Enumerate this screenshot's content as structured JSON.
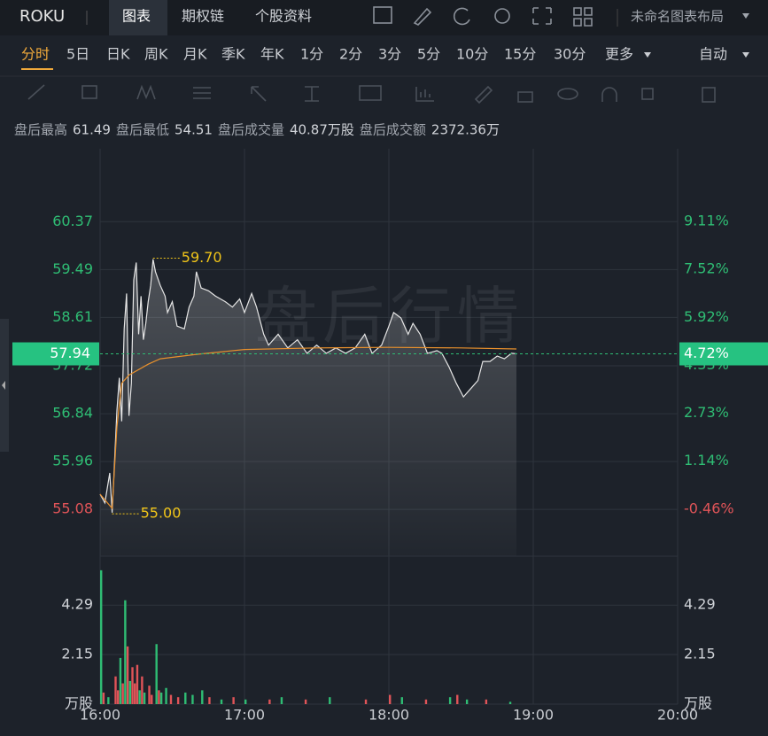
{
  "ui": {
    "symbol": "ROKU",
    "tabs": [
      "图表",
      "期权链",
      "个股资料"
    ],
    "layout_name": "未命名图表布局",
    "periods": [
      "分时",
      "5日",
      "日K",
      "周K",
      "月K",
      "季K",
      "年K",
      "1分",
      "2分",
      "3分",
      "5分",
      "10分",
      "15分",
      "30分",
      "更多"
    ],
    "period_mode": "自动",
    "info": [
      {
        "label": "盘后最高",
        "value": "61.49"
      },
      {
        "label": "盘后最低",
        "value": "54.51"
      },
      {
        "label": "盘后成交量",
        "value": "40.87万股"
      },
      {
        "label": "盘后成交额",
        "value": "2372.36万"
      }
    ],
    "watermark": "盘后行情"
  },
  "chart_data": [
    {
      "type": "line",
      "xlim": [
        "16:00",
        "20:00"
      ],
      "xticks": [
        "16:00",
        "17:00",
        "18:00",
        "19:00",
        "20:00"
      ],
      "ylim": [
        54.22,
        61.71
      ],
      "yticks": [
        55.08,
        55.96,
        56.84,
        57.72,
        58.61,
        59.49,
        60.37
      ],
      "y2lim": [
        -2.02,
        11.52
      ],
      "y2ticks": [
        {
          "value": -0.46,
          "label": "-0.46%"
        },
        {
          "value": 1.14,
          "label": "1.14%"
        },
        {
          "value": 2.73,
          "label": "2.73%"
        },
        {
          "value": 4.33,
          "label": "4.33%"
        },
        {
          "value": 5.92,
          "label": "5.92%"
        },
        {
          "value": 7.52,
          "label": "7.52%"
        },
        {
          "value": 9.11,
          "label": "9.11%"
        }
      ],
      "grid": true,
      "up_color": "#2fbd74",
      "down_color": "#e05458",
      "x": [
        "16:00",
        "16:02",
        "16:04",
        "16:05",
        "16:07",
        "16:08",
        "16:09",
        "16:10",
        "16:11",
        "16:12",
        "16:13",
        "16:14",
        "16:15",
        "16:16",
        "16:17",
        "16:18",
        "16:19",
        "16:20",
        "16:21",
        "16:22",
        "16:23",
        "16:25",
        "16:27",
        "16:28",
        "16:30",
        "16:32",
        "16:35",
        "16:37",
        "16:39",
        "16:40",
        "16:42",
        "16:45",
        "16:48",
        "16:52",
        "16:55",
        "16:58",
        "17:00",
        "17:03",
        "17:05",
        "17:08",
        "17:10",
        "17:14",
        "17:18",
        "17:22",
        "17:26",
        "17:30",
        "17:34",
        "17:38",
        "17:42",
        "17:46",
        "17:50",
        "17:53",
        "17:57",
        "18:00",
        "18:02",
        "18:05",
        "18:08",
        "18:10",
        "18:13",
        "18:16",
        "18:20",
        "18:22",
        "18:25",
        "18:28",
        "18:31",
        "18:34",
        "18:37",
        "18:39",
        "18:42",
        "18:45",
        "18:48",
        "18:51",
        "18:53"
      ],
      "series": [
        {
          "color": "#e6e6e6",
          "values": [
            55.36,
            55.2,
            55.75,
            55.02,
            56.9,
            57.5,
            56.7,
            58.4,
            59.05,
            56.8,
            57.4,
            59.3,
            59.62,
            58.3,
            59.0,
            58.2,
            58.5,
            58.9,
            59.2,
            59.68,
            59.45,
            59.2,
            59.0,
            58.7,
            58.9,
            58.45,
            58.4,
            58.8,
            59.0,
            59.45,
            59.15,
            59.1,
            59.0,
            58.9,
            58.8,
            58.95,
            58.7,
            59.05,
            58.8,
            58.3,
            58.1,
            58.3,
            58.05,
            58.2,
            57.95,
            58.1,
            57.95,
            58.05,
            57.95,
            58.05,
            58.3,
            57.95,
            58.1,
            58.45,
            58.7,
            58.6,
            58.3,
            58.5,
            58.3,
            57.95,
            58.0,
            57.95,
            57.7,
            57.4,
            57.15,
            57.3,
            57.45,
            57.8,
            57.8,
            57.9,
            57.85,
            57.95,
            57.94
          ]
        },
        {
          "color": "#e8902c",
          "x": [
            "16:00",
            "16:05",
            "16:07",
            "16:09",
            "16:12",
            "16:20",
            "16:25",
            "16:40",
            "17:00",
            "17:30",
            "18:00",
            "18:30",
            "18:53"
          ],
          "values": [
            55.36,
            55.1,
            56.6,
            57.4,
            57.55,
            57.75,
            57.85,
            57.93,
            58.02,
            58.05,
            58.06,
            58.05,
            58.03
          ]
        }
      ],
      "annotations": [
        {
          "x": "16:22",
          "value": 59.7,
          "label": "59.70"
        },
        {
          "x": "16:05",
          "value": 55.0,
          "label": "55.00"
        }
      ],
      "current": {
        "value": 57.94,
        "change": 4.72,
        "change_label": "4.72%"
      }
    },
    {
      "type": "bar",
      "xlim": [
        "16:00",
        "20:00"
      ],
      "ylim": [
        0,
        6.41
      ],
      "yticks": [
        {
          "value": 0,
          "label": "万股"
        },
        2.15,
        4.29
      ],
      "grid": true,
      "x": [
        "16:00",
        "16:01",
        "16:03",
        "16:06",
        "16:07",
        "16:08",
        "16:09",
        "16:10",
        "16:11",
        "16:12",
        "16:13",
        "16:14",
        "16:15",
        "16:16",
        "16:17",
        "16:18",
        "16:20",
        "16:21",
        "16:23",
        "16:24",
        "16:25",
        "16:27",
        "16:29",
        "16:32",
        "16:35",
        "16:38",
        "16:42",
        "16:45",
        "16:50",
        "16:55",
        "17:00",
        "17:10",
        "17:15",
        "17:25",
        "17:35",
        "17:50",
        "18:00",
        "18:05",
        "18:15",
        "18:25",
        "18:28",
        "18:32",
        "18:40",
        "18:50"
      ],
      "values": [
        5.8,
        0.5,
        0.3,
        1.2,
        0.6,
        2.0,
        0.9,
        4.5,
        2.5,
        1.0,
        1.6,
        0.9,
        1.7,
        0.6,
        1.2,
        0.5,
        0.8,
        0.4,
        2.6,
        0.6,
        0.5,
        0.7,
        0.4,
        0.3,
        0.5,
        0.4,
        0.6,
        0.3,
        0.2,
        0.3,
        0.2,
        0.2,
        0.3,
        0.2,
        0.3,
        0.2,
        0.4,
        0.3,
        0.2,
        0.3,
        0.4,
        0.2,
        0.2,
        0.1
      ],
      "colors": [
        "#2fbd74",
        "#e05458",
        "#2fbd74",
        "#e05458",
        "#e05458",
        "#2fbd74",
        "#e05458",
        "#2fbd74",
        "#e05458",
        "#2fbd74",
        "#e05458",
        "#e05458",
        "#e05458",
        "#2fbd74",
        "#e05458",
        "#2fbd74",
        "#e05458",
        "#e05458",
        "#2fbd74",
        "#e05458",
        "#2fbd74",
        "#2fbd74",
        "#e05458",
        "#e05458",
        "#2fbd74",
        "#2fbd74",
        "#2fbd74",
        "#e05458",
        "#2fbd74",
        "#e05458",
        "#2fbd74",
        "#e05458",
        "#2fbd74",
        "#e05458",
        "#2fbd74",
        "#e05458",
        "#e05458",
        "#2fbd74",
        "#e05458",
        "#2fbd74",
        "#e05458",
        "#2fbd74",
        "#e05458",
        "#2fbd74"
      ]
    }
  ]
}
